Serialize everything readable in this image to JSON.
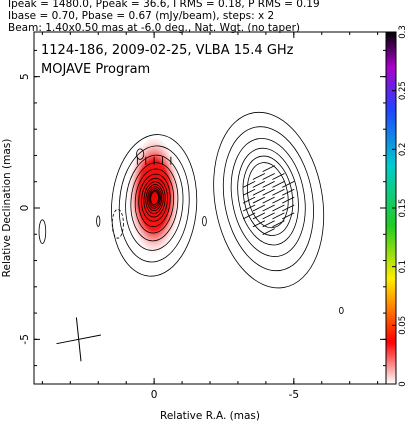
{
  "header": {
    "line1": "Ipeak = 1480.0, Ppeak = 36.6, I RMS = 0.18, P RMS = 0.19",
    "line2": "Ibase = 0.70, Pbase = 0.67 (mJy/beam), steps: x 2",
    "line3": "Beam: 1.40x0.50 mas at -6.0 deg., Nat. Wgt. (no taper)"
  },
  "chart_data": {
    "type": "contour",
    "title": "1124-186, 2009-02-25, VLBA 15.4 GHz",
    "subtitle": "MOJAVE Program",
    "xlabel": "Relative R.A. (mas)",
    "ylabel": "Relative Declination (mas)",
    "xlim": [
      4.3,
      -8.3
    ],
    "ylim": [
      -6.7,
      6.7
    ],
    "xticks": [
      {
        "v": 0,
        "label": "0"
      },
      {
        "v": -5,
        "label": "-5"
      }
    ],
    "yticks": [
      {
        "v": 5,
        "label": "5"
      },
      {
        "v": 0,
        "label": "0"
      },
      {
        "v": -5,
        "label": "-5"
      }
    ],
    "colorbar": {
      "min": 0,
      "max": 0.3,
      "ticks": [
        {
          "v": 0,
          "label": "0"
        },
        {
          "v": 0.05,
          "label": "0.05"
        },
        {
          "v": 0.1,
          "label": "0.1"
        },
        {
          "v": 0.15,
          "label": "0.15"
        },
        {
          "v": 0.2,
          "label": "0.2"
        },
        {
          "v": 0.25,
          "label": "0.25"
        },
        {
          "v": 0.3,
          "label": "0.3"
        }
      ]
    },
    "components": [
      {
        "name": "core",
        "x": 0.0,
        "y": 0.1,
        "sx": 0.95,
        "sy": 2.0,
        "levels": 13,
        "polarized": true
      },
      {
        "name": "jet",
        "x": -4.1,
        "y": 0.3,
        "sx": 1.2,
        "sy": 2.5,
        "levels": 6,
        "polarized": true
      }
    ],
    "beam": {
      "x": 2.7,
      "y": -5.0,
      "major": 1.4,
      "minor": 0.5,
      "pa": -6.0
    }
  }
}
